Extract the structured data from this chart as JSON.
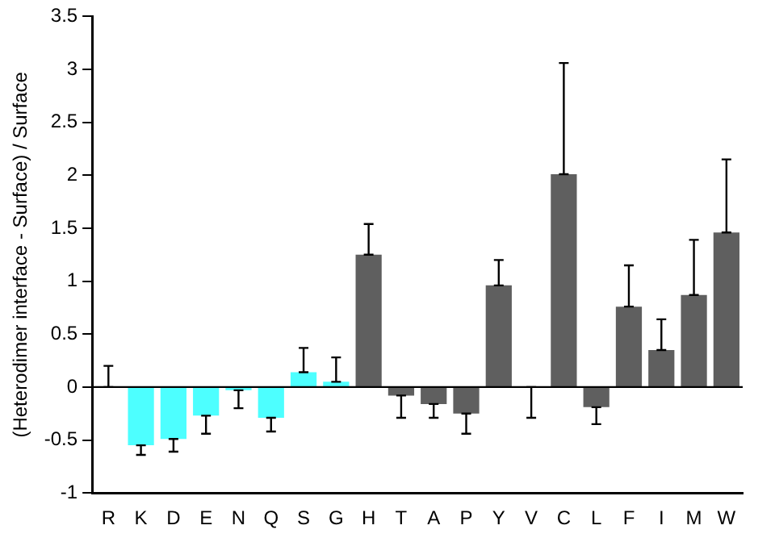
{
  "chart_data": {
    "type": "bar",
    "ylabel": "(Heterodimer interface - Surface) / Surface",
    "categories": [
      "R",
      "K",
      "D",
      "E",
      "N",
      "Q",
      "S",
      "G",
      "H",
      "T",
      "A",
      "P",
      "Y",
      "V",
      "C",
      "L",
      "F",
      "I",
      "M",
      "W"
    ],
    "values": [
      0,
      -0.55,
      -0.49,
      -0.27,
      -0.03,
      -0.29,
      0.14,
      0.05,
      1.25,
      -0.08,
      -0.16,
      -0.25,
      0.96,
      0,
      2.01,
      -0.19,
      0.76,
      0.35,
      0.87,
      1.46
    ],
    "errors": [
      [
        0,
        0.2
      ],
      [
        -0.64,
        -0.55
      ],
      [
        -0.61,
        -0.49
      ],
      [
        -0.44,
        -0.27
      ],
      [
        -0.2,
        -0.03
      ],
      [
        -0.42,
        -0.29
      ],
      [
        0.14,
        0.37
      ],
      [
        0.05,
        0.28
      ],
      [
        1.25,
        1.54
      ],
      [
        -0.29,
        -0.08
      ],
      [
        -0.29,
        -0.16
      ],
      [
        -0.44,
        -0.25
      ],
      [
        0.96,
        1.2
      ],
      [
        -0.29,
        0
      ],
      [
        2.01,
        3.06
      ],
      [
        -0.35,
        -0.19
      ],
      [
        0.76,
        1.15
      ],
      [
        0.35,
        0.64
      ],
      [
        0.87,
        1.39
      ],
      [
        1.46,
        2.15
      ]
    ],
    "colors": [
      "#4dffff",
      "#4dffff",
      "#4dffff",
      "#4dffff",
      "#4dffff",
      "#4dffff",
      "#4dffff",
      "#4dffff",
      "#5f5f5f",
      "#5f5f5f",
      "#5f5f5f",
      "#5f5f5f",
      "#5f5f5f",
      "#5f5f5f",
      "#5f5f5f",
      "#5f5f5f",
      "#5f5f5f",
      "#5f5f5f",
      "#5f5f5f",
      "#5f5f5f"
    ],
    "ylim": [
      -1,
      3.5
    ],
    "yticks": [
      -1,
      -0.5,
      0,
      0.5,
      1,
      1.5,
      2,
      2.5,
      3,
      3.5
    ],
    "ref_lines": [
      {
        "axis": "y",
        "value": 0,
        "color": "#000000"
      }
    ],
    "grid": false,
    "legend": false
  }
}
